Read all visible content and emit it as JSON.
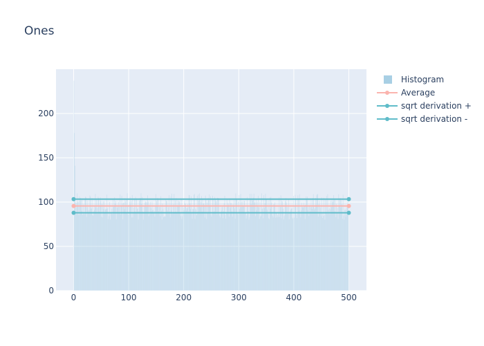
{
  "chart_data": {
    "type": "bar",
    "title": "Ones",
    "xlabel": "",
    "ylabel": "",
    "xlim": [
      -32,
      532
    ],
    "ylim": [
      0,
      250
    ],
    "xticks": [
      0,
      100,
      200,
      300,
      400,
      500
    ],
    "yticks": [
      0,
      50,
      100,
      150,
      200
    ],
    "grid": true,
    "legend_position": "top-right",
    "histogram": {
      "name": "Histogram",
      "color": "#9ecae1",
      "bin_width": 1,
      "x_start": 0,
      "x_end": 499,
      "typical_value_range": [
        80,
        110
      ],
      "spikes": [
        {
          "x": 0,
          "value": 237
        },
        {
          "x": 1,
          "value": 178
        },
        {
          "x": 2,
          "value": 141
        }
      ]
    },
    "series": [
      {
        "name": "Average",
        "type": "line",
        "color": "#fbb4ae",
        "x": [
          0,
          500
        ],
        "y": [
          95.6,
          95.6
        ]
      },
      {
        "name": "sqrt derivation +",
        "type": "line",
        "color": "#5fbcc9",
        "x": [
          0,
          500
        ],
        "y": [
          103.3,
          103.3
        ]
      },
      {
        "name": "sqrt derivation -",
        "type": "line",
        "color": "#5fbcc9",
        "x": [
          0,
          500
        ],
        "y": [
          87.9,
          87.9
        ]
      }
    ]
  }
}
